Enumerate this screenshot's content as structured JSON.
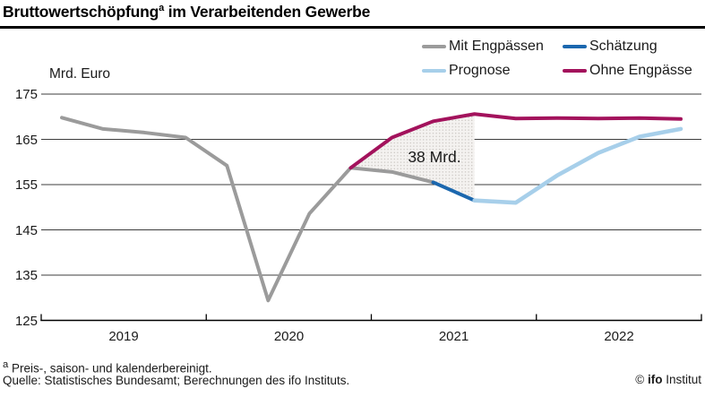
{
  "title": {
    "main": "Bruttowertschöpfung",
    "sup": "a",
    "rest": " im Verarbeitenden Gewerbe"
  },
  "legend": {
    "items": [
      {
        "id": "mit-engpaessen",
        "label": "Mit Engpässen",
        "color": "#9b9b9b"
      },
      {
        "id": "schaetzung",
        "label": "Schätzung",
        "color": "#1b67ae"
      },
      {
        "id": "prognose",
        "label": "Prognose",
        "color": "#a7cfea"
      },
      {
        "id": "ohne-engpaesse",
        "label": "Ohne Engpässe",
        "color": "#a3125c"
      }
    ]
  },
  "axis": {
    "unit_label": "Mrd. Euro",
    "ytick_labels": [
      "175",
      "165",
      "155",
      "145",
      "135",
      "125"
    ],
    "xtick_labels": [
      "2019",
      "2020",
      "2021",
      "2022"
    ]
  },
  "annotation": {
    "gap_label": "38 Mrd."
  },
  "footer": {
    "footnote_sup": "a",
    "footnote": " Preis-, saison- und kalenderbereinigt.",
    "source": "Quelle: Statistisches Bundesamt; Berechnungen des ifo Instituts.",
    "copyright_symbol": "© ",
    "copyright_brand": "ifo",
    "copyright_rest": " Institut"
  },
  "chart_data": {
    "type": "line",
    "title": "Bruttowertschöpfung im Verarbeitenden Gewerbe",
    "ylabel": "Mrd. Euro",
    "ylim": [
      125,
      175
    ],
    "xlim": [
      2019,
      2023
    ],
    "grid": "horizontal",
    "legend_position": "top-right",
    "yticks": [
      175,
      165,
      155,
      145,
      135,
      125
    ],
    "xtick_year_boundaries": [
      2019,
      2020,
      2021,
      2022,
      2023
    ],
    "year_label_centers": [
      2019.5,
      2020.5,
      2021.5,
      2022.5
    ],
    "series": [
      {
        "name": "Mit Engpässen",
        "color": "#9b9b9b",
        "width": 4,
        "quarters": [
          "2019Q1",
          "2019Q2",
          "2019Q3",
          "2019Q4",
          "2020Q1",
          "2020Q2",
          "2020Q3",
          "2020Q4",
          "2021Q1",
          "2021Q2"
        ],
        "x": [
          2019.125,
          2019.375,
          2019.625,
          2019.875,
          2020.125,
          2020.375,
          2020.625,
          2020.875,
          2021.125,
          2021.375
        ],
        "values": [
          169.8,
          167.3,
          166.5,
          165.4,
          159.2,
          129.4,
          148.6,
          158.7,
          157.8,
          155.5
        ]
      },
      {
        "name": "Ohne Engpässe",
        "color": "#a3125c",
        "width": 4,
        "quarters": [
          "2020Q4",
          "2021Q1",
          "2021Q2",
          "2021Q3",
          "2021Q4",
          "2022Q1",
          "2022Q2",
          "2022Q3",
          "2022Q4"
        ],
        "x": [
          2020.875,
          2021.125,
          2021.375,
          2021.625,
          2021.875,
          2022.125,
          2022.375,
          2022.625,
          2022.875
        ],
        "values": [
          158.7,
          165.4,
          169.0,
          170.6,
          169.6,
          169.7,
          169.6,
          169.7,
          169.5
        ]
      },
      {
        "name": "Schätzung",
        "color": "#1b67ae",
        "width": 4,
        "quarters": [
          "2021Q2",
          "2021Q3"
        ],
        "x": [
          2021.375,
          2021.625
        ],
        "values": [
          155.5,
          151.5
        ]
      },
      {
        "name": "Prognose",
        "color": "#a7cfea",
        "width": 4.6,
        "quarters": [
          "2021Q3",
          "2021Q4",
          "2022Q1",
          "2022Q2",
          "2022Q3",
          "2022Q4"
        ],
        "x": [
          2021.625,
          2021.875,
          2022.125,
          2022.375,
          2022.625,
          2022.875
        ],
        "values": [
          151.5,
          151.0,
          157.0,
          162.0,
          165.6,
          167.3
        ]
      }
    ],
    "band": {
      "label": "38 Mrd.",
      "description": "Gap between Ohne Engpässe and Mit Engpässen/Schätzung, 2020Q4-2021Q3",
      "points": [
        [
          2020.875,
          158.7
        ],
        [
          2021.125,
          165.4
        ],
        [
          2021.375,
          169.0
        ],
        [
          2021.625,
          170.6
        ],
        [
          2021.625,
          151.5
        ],
        [
          2021.375,
          155.5
        ],
        [
          2021.125,
          157.8
        ]
      ]
    }
  }
}
